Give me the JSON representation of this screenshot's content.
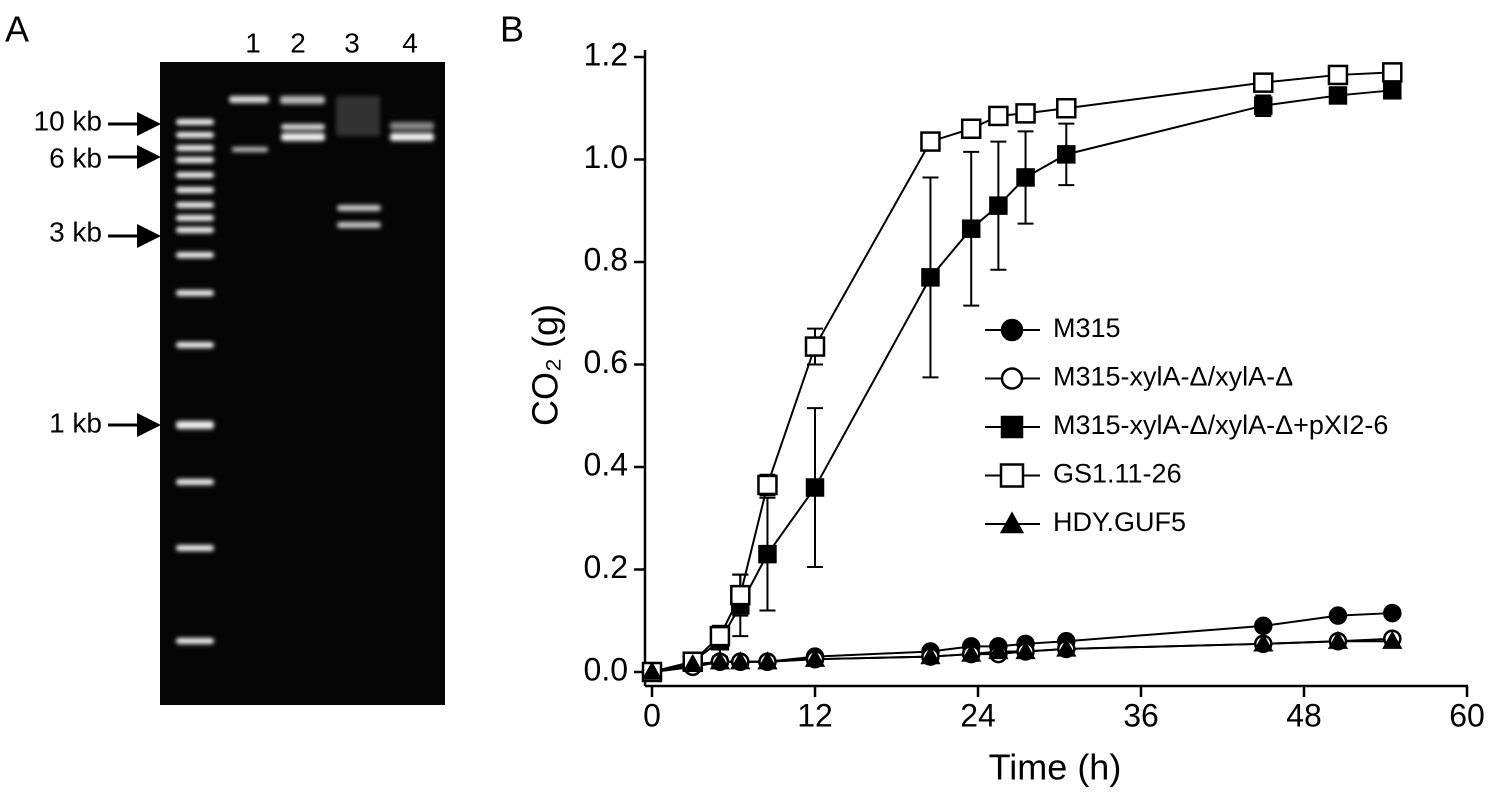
{
  "panel_a": {
    "label": "A",
    "lanes": [
      "1",
      "2",
      "3",
      "4"
    ],
    "markers": [
      "10 kb",
      "6 kb",
      "3 kb",
      "1 kb"
    ]
  },
  "chart_data": {
    "type": "line",
    "panel_label": "B",
    "x_label": "Time (h)",
    "y_label": "CO₂ (g)",
    "x": [
      0,
      3,
      5,
      6.5,
      8.5,
      12,
      20.5,
      23.5,
      25.5,
      27.5,
      30.5,
      45,
      50.5,
      54.5
    ],
    "xlim": [
      0,
      60
    ],
    "xticks": [
      0,
      12,
      24,
      36,
      48,
      60
    ],
    "ylim": [
      0,
      1.2
    ],
    "yticks": [
      {
        "value": 0,
        "label": "0.0"
      },
      0.2,
      0.4,
      0.6,
      0.8,
      {
        "value": 1,
        "label": "1.0"
      },
      1.2
    ],
    "legend": "right",
    "series": [
      {
        "name": "M315",
        "color": "#000000",
        "marker": "circle",
        "filled": true,
        "values": [
          0,
          0.01,
          0.02,
          0.02,
          0.02,
          0.03,
          0.04,
          0.05,
          0.05,
          0.055,
          0.06,
          0.09,
          0.11,
          0.115
        ]
      },
      {
        "name": "M315-xylA-Δ/xylA-Δ",
        "color": "#000000",
        "marker": "circle",
        "filled": false,
        "values": [
          0,
          0.01,
          0.02,
          0.02,
          0.02,
          0.025,
          0.03,
          0.035,
          0.035,
          0.04,
          0.045,
          0.055,
          0.06,
          0.065
        ]
      },
      {
        "name": "M315-xylA-Δ/xylA-Δ+pXI2-6",
        "color": "#000000",
        "marker": "square",
        "filled": true,
        "values": [
          0,
          0.02,
          0.06,
          0.13,
          0.23,
          0.36,
          0.77,
          0.865,
          0.91,
          0.965,
          1.01,
          1.105,
          1.125,
          1.135
        ],
        "errors": [
          0.005,
          0.01,
          0.03,
          0.06,
          0.11,
          0.155,
          0.195,
          0.15,
          0.125,
          0.09,
          0.06,
          0.02,
          0.01,
          0.01
        ]
      },
      {
        "name": "GS1.11-26",
        "color": "#000000",
        "marker": "square",
        "filled": false,
        "values": [
          0,
          0.02,
          0.07,
          0.15,
          0.365,
          0.635,
          1.035,
          1.06,
          1.085,
          1.09,
          1.1,
          1.15,
          1.165,
          1.17
        ],
        "errors": [
          0.005,
          0.01,
          0.02,
          0.04,
          0.02,
          0.035,
          0.01,
          0.01,
          0.01,
          0.01,
          0.01,
          0.01,
          0.01,
          0.01
        ]
      },
      {
        "name": "HDY.GUF5",
        "color": "#000000",
        "marker": "triangle",
        "filled": true,
        "values": [
          0,
          0.015,
          0.02,
          0.02,
          0.02,
          0.025,
          0.03,
          0.035,
          0.04,
          0.04,
          0.045,
          0.055,
          0.06,
          0.06
        ]
      }
    ]
  }
}
